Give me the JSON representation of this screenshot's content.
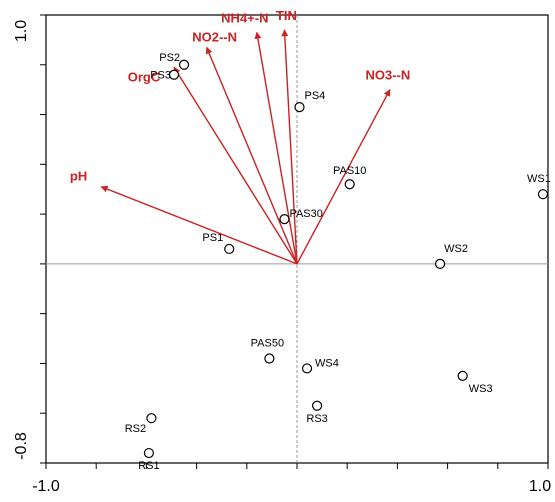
{
  "chart_data": {
    "type": "scatter",
    "title": "",
    "xlabel": "",
    "ylabel": "",
    "xlim": [
      -1.0,
      1.0
    ],
    "ylim": [
      -0.8,
      1.0
    ],
    "x_tick_labels": [
      "-1.0",
      "1.0"
    ],
    "y_tick_labels": [
      "-0.8",
      "1.0"
    ],
    "grid": false,
    "reference_lines": {
      "x": 0,
      "y": 0
    },
    "colors": {
      "vectors": "#cc2222",
      "points": "#000000",
      "reference_lines": "#9a9a9a"
    },
    "sites": [
      {
        "name": "PS1",
        "x": -0.27,
        "y": 0.06
      },
      {
        "name": "PS2",
        "x": -0.45,
        "y": 0.8
      },
      {
        "name": "PS3",
        "x": -0.49,
        "y": 0.76
      },
      {
        "name": "PS4",
        "x": 0.01,
        "y": 0.63
      },
      {
        "name": "PAS10",
        "x": 0.21,
        "y": 0.32
      },
      {
        "name": "PAS30",
        "x": -0.05,
        "y": 0.18
      },
      {
        "name": "PAS50",
        "x": -0.11,
        "y": -0.38
      },
      {
        "name": "WS1",
        "x": 0.98,
        "y": 0.28
      },
      {
        "name": "WS2",
        "x": 0.57,
        "y": 0.0
      },
      {
        "name": "WS3",
        "x": 0.66,
        "y": -0.45
      },
      {
        "name": "WS4",
        "x": 0.04,
        "y": -0.42
      },
      {
        "name": "RS1",
        "x": -0.59,
        "y": -0.76
      },
      {
        "name": "RS2",
        "x": -0.58,
        "y": -0.62
      },
      {
        "name": "RS3",
        "x": 0.08,
        "y": -0.57
      }
    ],
    "vectors": [
      {
        "name": "pH",
        "x": -0.78,
        "y": 0.31
      },
      {
        "name": "OrgC",
        "x": -0.49,
        "y": 0.79
      },
      {
        "name": "NO2--N",
        "x": -0.36,
        "y": 0.87
      },
      {
        "name": "NH4+-N",
        "x": -0.16,
        "y": 0.93
      },
      {
        "name": "TIN",
        "x": -0.05,
        "y": 0.94
      },
      {
        "name": "NO3--N",
        "x": 0.37,
        "y": 0.7
      }
    ]
  }
}
